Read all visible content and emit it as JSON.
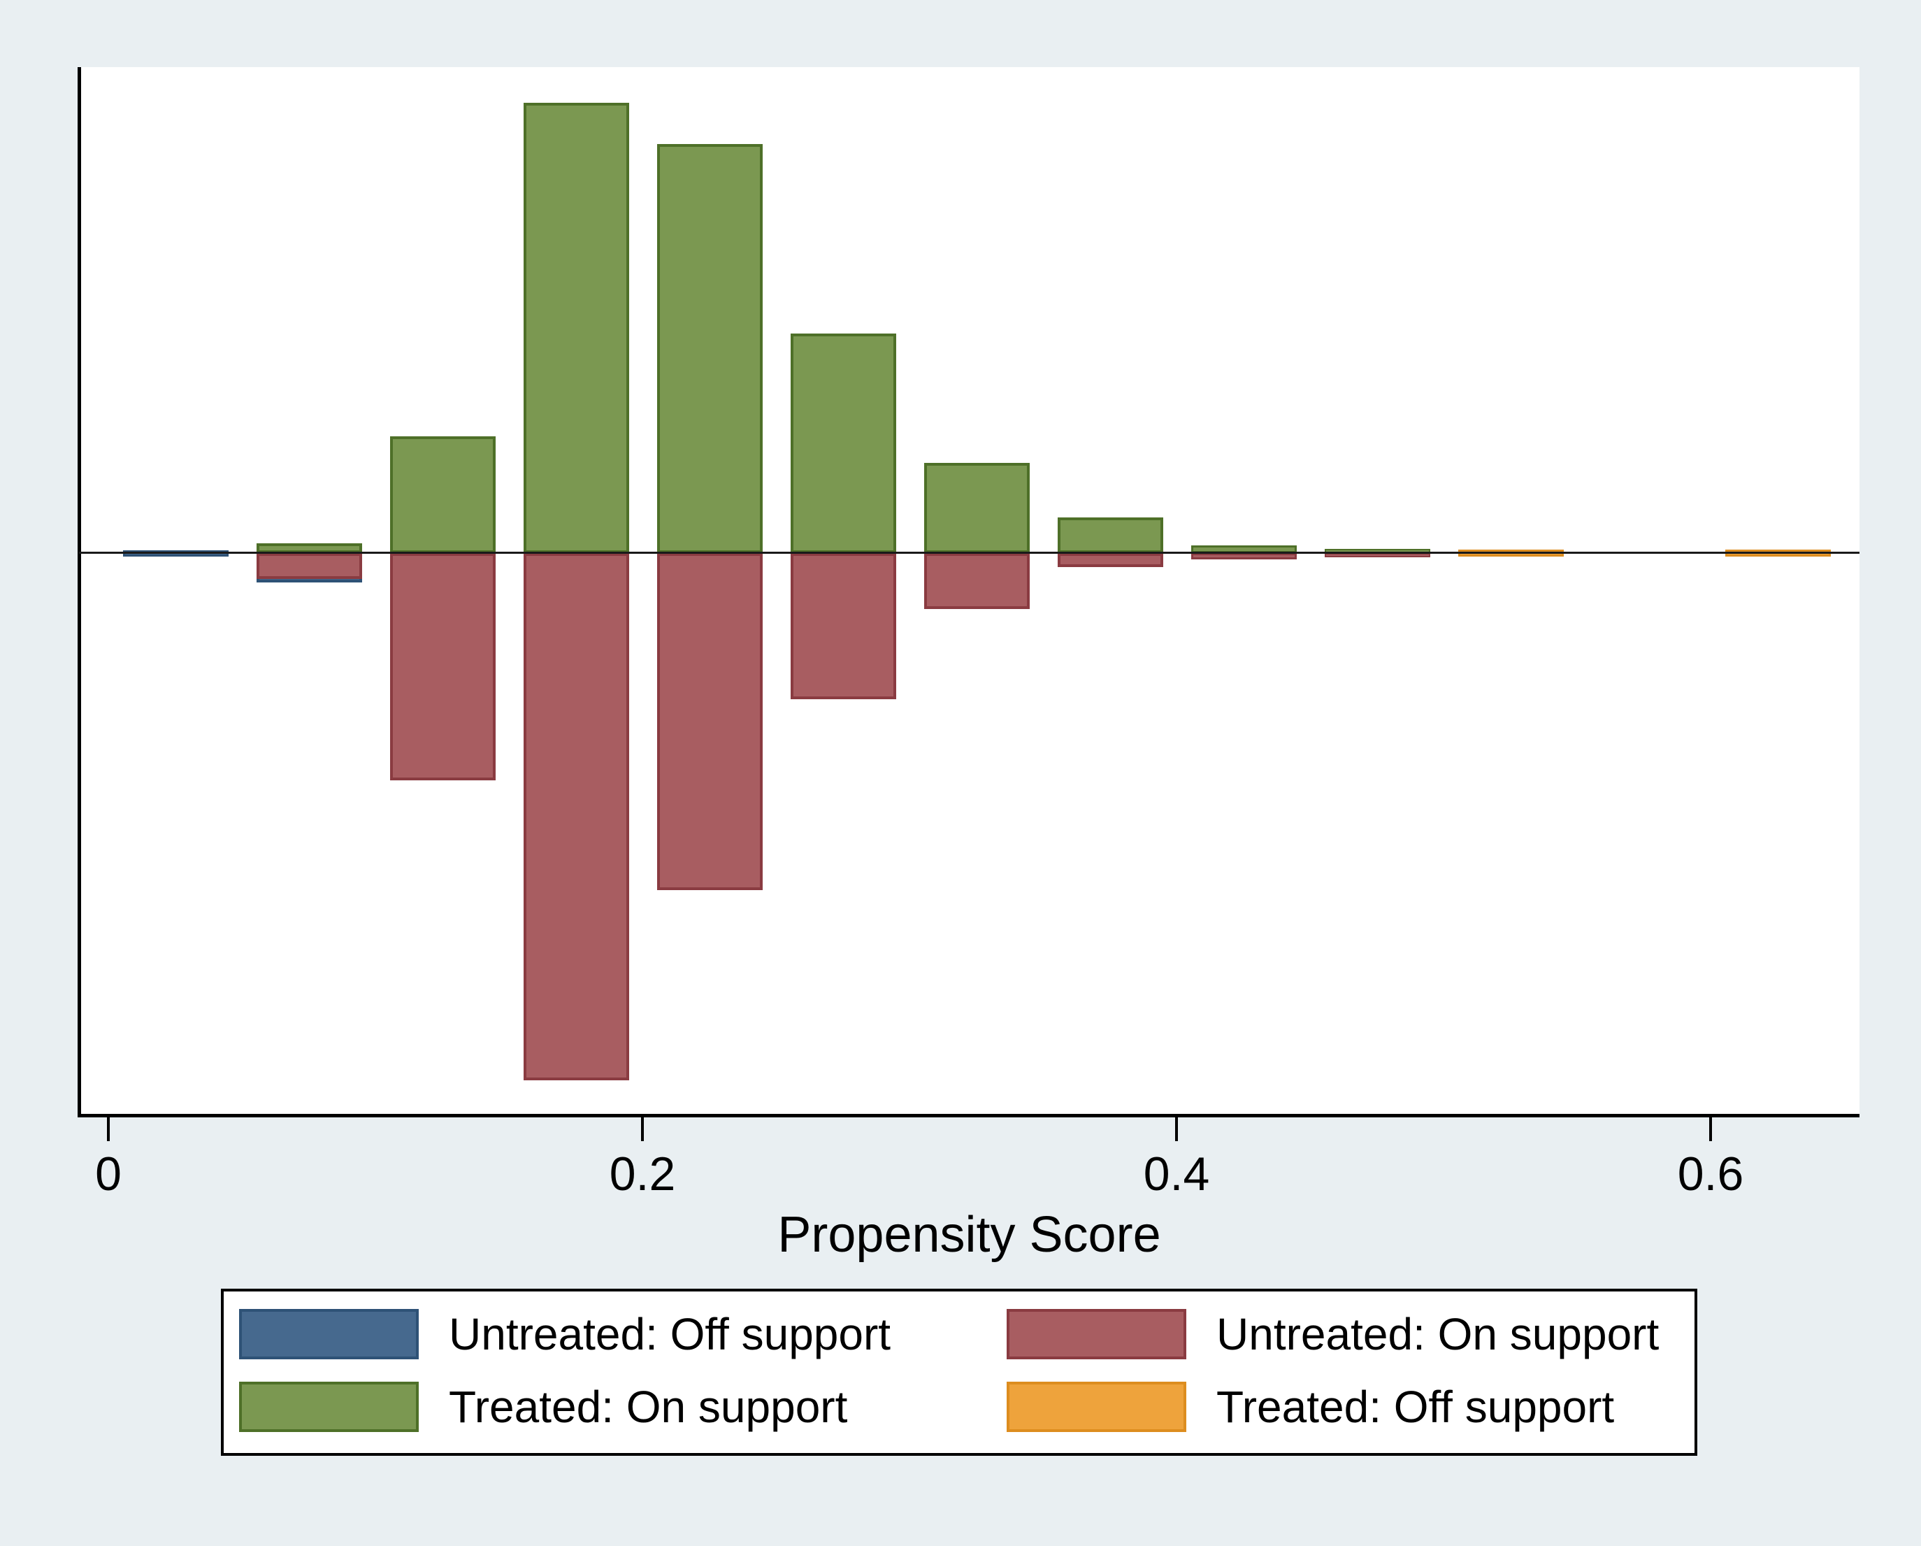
{
  "chart_data": {
    "type": "bar",
    "variant": "mirror-histogram-propensity-score",
    "title": "",
    "xlabel": "Propensity Score",
    "ylabel": "",
    "x_axis": {
      "ticks": [
        {
          "value": 0.0,
          "label": "0"
        },
        {
          "value": 0.2,
          "label": "0.2"
        },
        {
          "value": 0.4,
          "label": "0.4"
        },
        {
          "value": 0.6,
          "label": "0.6"
        }
      ],
      "range_shown": [
        0.0,
        0.655
      ],
      "grid": false
    },
    "y_axis": {
      "visible": false,
      "note": "no y ticks shown; values are relative frequencies, 1.0 = tallest treated bar; treated bars extend up, untreated bars extend down",
      "up_range": [
        0,
        1.08
      ],
      "down_range": [
        0,
        1.25
      ]
    },
    "legend_position": "below-plot",
    "series_names": [
      "Untreated: Off support",
      "Untreated: On support",
      "Treated: On support",
      "Treated: Off support"
    ],
    "bin_width": 0.05,
    "bins": [
      {
        "x_start": 0.0055,
        "x_end": 0.0555,
        "bars": [
          {
            "series": "untreated_off",
            "value": 0.014,
            "straddle": true
          }
        ]
      },
      {
        "x_start": 0.0555,
        "x_end": 0.1055,
        "bars": [
          {
            "series": "untreated_off",
            "value": 0.065,
            "direction": "down"
          },
          {
            "series": "untreated_on",
            "value": 0.057,
            "direction": "down"
          },
          {
            "series": "treated_on",
            "value": 0.022,
            "direction": "up"
          }
        ]
      },
      {
        "x_start": 0.1055,
        "x_end": 0.1555,
        "bars": [
          {
            "series": "untreated_on",
            "value": 0.505,
            "direction": "down"
          },
          {
            "series": "treated_on",
            "value": 0.259,
            "direction": "up"
          }
        ]
      },
      {
        "x_start": 0.1555,
        "x_end": 0.2055,
        "bars": [
          {
            "series": "untreated_on",
            "value": 1.171,
            "direction": "down"
          },
          {
            "series": "treated_on",
            "value": 1.0,
            "direction": "up"
          }
        ]
      },
      {
        "x_start": 0.2055,
        "x_end": 0.2555,
        "bars": [
          {
            "series": "untreated_on",
            "value": 0.748,
            "direction": "down"
          },
          {
            "series": "treated_on",
            "value": 0.908,
            "direction": "up"
          }
        ]
      },
      {
        "x_start": 0.2555,
        "x_end": 0.3055,
        "bars": [
          {
            "series": "untreated_on",
            "value": 0.325,
            "direction": "down"
          },
          {
            "series": "treated_on",
            "value": 0.488,
            "direction": "up"
          }
        ]
      },
      {
        "x_start": 0.3055,
        "x_end": 0.3555,
        "bars": [
          {
            "series": "untreated_on",
            "value": 0.124,
            "direction": "down"
          },
          {
            "series": "treated_on",
            "value": 0.2,
            "direction": "up"
          }
        ]
      },
      {
        "x_start": 0.3555,
        "x_end": 0.4055,
        "bars": [
          {
            "series": "untreated_on",
            "value": 0.031,
            "direction": "down"
          },
          {
            "series": "treated_on",
            "value": 0.079,
            "direction": "up"
          }
        ]
      },
      {
        "x_start": 0.4055,
        "x_end": 0.4555,
        "bars": [
          {
            "series": "untreated_on",
            "value": 0.014,
            "direction": "down"
          },
          {
            "series": "treated_on",
            "value": 0.017,
            "direction": "up"
          }
        ]
      },
      {
        "x_start": 0.4555,
        "x_end": 0.5055,
        "bars": [
          {
            "series": "untreated_on",
            "value": 0.009,
            "direction": "down"
          },
          {
            "series": "treated_on",
            "value": 0.009,
            "direction": "up"
          }
        ]
      },
      {
        "x_start": 0.5055,
        "x_end": 0.5555,
        "bars": [
          {
            "series": "treated_off",
            "value": 0.016,
            "straddle": true
          }
        ]
      },
      {
        "x_start": 0.5555,
        "x_end": 0.6055,
        "bars": []
      },
      {
        "x_start": 0.6055,
        "x_end": 0.6555,
        "bars": [
          {
            "series": "treated_off",
            "value": 0.016,
            "straddle": true
          }
        ]
      }
    ]
  },
  "colors": {
    "background": "#e9eff2",
    "plot_background": "#ffffff",
    "axis": "#000000",
    "untreated_off": {
      "fill": "#46698e",
      "border": "#2e5276"
    },
    "untreated_on": {
      "fill": "#a85d61",
      "border": "#8a3b41"
    },
    "treated_on": {
      "fill": "#7b9851",
      "border": "#4e7028"
    },
    "treated_off": {
      "fill": "#eea33c",
      "border": "#dd8d1f"
    }
  },
  "axis": {
    "x": {
      "title": "Propensity Score",
      "ticks": [
        {
          "label": "0"
        },
        {
          "label": "0.2"
        },
        {
          "label": "0.4"
        },
        {
          "label": "0.6"
        }
      ]
    }
  },
  "legend": {
    "entries": [
      {
        "series": "untreated_off",
        "label": "Untreated: Off support"
      },
      {
        "series": "untreated_on",
        "label": "Untreated: On support"
      },
      {
        "series": "treated_on",
        "label": "Treated: On support"
      },
      {
        "series": "treated_off",
        "label": "Treated: Off support"
      }
    ]
  }
}
